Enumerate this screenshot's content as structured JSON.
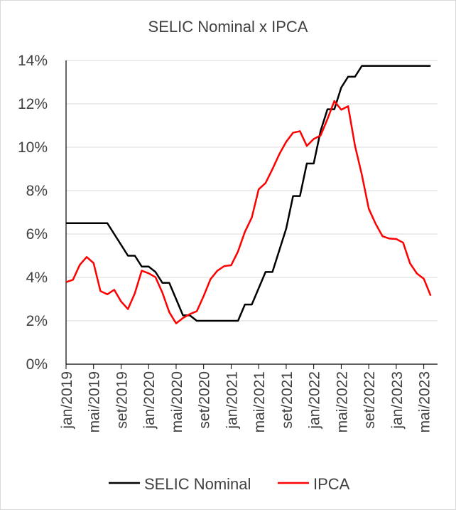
{
  "chart_data": {
    "type": "line",
    "title": "SELIC Nominal x IPCA",
    "xlabel": "",
    "ylabel": "",
    "ylim": [
      0,
      14
    ],
    "y_ticks": [
      0,
      2,
      4,
      6,
      8,
      10,
      12,
      14
    ],
    "y_tick_labels": [
      "0%",
      "2%",
      "4%",
      "6%",
      "8%",
      "10%",
      "12%",
      "14%"
    ],
    "x_tick_labels": [
      "jan/2019",
      "mai/2019",
      "set/2019",
      "jan/2020",
      "mai/2020",
      "set/2020",
      "jan/2021",
      "mai/2021",
      "set/2021",
      "jan/2022",
      "mai/2022",
      "set/2022",
      "jan/2023",
      "mai/2023"
    ],
    "x_tick_indices": [
      0,
      4,
      8,
      12,
      16,
      20,
      24,
      28,
      32,
      36,
      40,
      44,
      48,
      52
    ],
    "categories": [
      "jan/2019",
      "fev/2019",
      "mar/2019",
      "abr/2019",
      "mai/2019",
      "jun/2019",
      "jul/2019",
      "ago/2019",
      "set/2019",
      "out/2019",
      "nov/2019",
      "dez/2019",
      "jan/2020",
      "fev/2020",
      "mar/2020",
      "abr/2020",
      "mai/2020",
      "jun/2020",
      "jul/2020",
      "ago/2020",
      "set/2020",
      "out/2020",
      "nov/2020",
      "dez/2020",
      "jan/2021",
      "fev/2021",
      "mar/2021",
      "abr/2021",
      "mai/2021",
      "jun/2021",
      "jul/2021",
      "ago/2021",
      "set/2021",
      "out/2021",
      "nov/2021",
      "dez/2021",
      "jan/2022",
      "fev/2022",
      "mar/2022",
      "abr/2022",
      "mai/2022",
      "jun/2022",
      "jul/2022",
      "ago/2022",
      "set/2022",
      "out/2022",
      "nov/2022",
      "dez/2022",
      "jan/2023",
      "fev/2023",
      "mar/2023",
      "abr/2023",
      "mai/2023",
      "jun/2023"
    ],
    "legend_position": "bottom",
    "grid": "horizontal",
    "series": [
      {
        "name": "SELIC Nominal",
        "color": "#000000",
        "values": [
          6.5,
          6.5,
          6.5,
          6.5,
          6.5,
          6.5,
          6.5,
          6.0,
          5.5,
          5.0,
          5.0,
          4.5,
          4.5,
          4.25,
          3.75,
          3.75,
          3.0,
          2.25,
          2.25,
          2.0,
          2.0,
          2.0,
          2.0,
          2.0,
          2.0,
          2.0,
          2.75,
          2.75,
          3.5,
          4.25,
          4.25,
          5.25,
          6.25,
          7.75,
          7.75,
          9.25,
          9.25,
          10.75,
          11.75,
          11.75,
          12.75,
          13.25,
          13.25,
          13.75,
          13.75,
          13.75,
          13.75,
          13.75,
          13.75,
          13.75,
          13.75,
          13.75,
          13.75,
          13.75
        ]
      },
      {
        "name": "IPCA",
        "color": "#ff0000",
        "values": [
          3.78,
          3.89,
          4.58,
          4.94,
          4.66,
          3.37,
          3.22,
          3.43,
          2.89,
          2.54,
          3.27,
          4.31,
          4.19,
          4.01,
          3.3,
          2.4,
          1.88,
          2.13,
          2.31,
          2.44,
          3.14,
          3.92,
          4.31,
          4.52,
          4.56,
          5.2,
          6.1,
          6.76,
          8.06,
          8.35,
          8.99,
          9.68,
          10.25,
          10.67,
          10.74,
          10.06,
          10.38,
          10.54,
          11.3,
          12.13,
          11.73,
          11.89,
          10.07,
          8.73,
          7.17,
          6.47,
          5.9,
          5.79,
          5.77,
          5.6,
          4.65,
          4.18,
          3.94,
          3.16
        ]
      }
    ]
  }
}
